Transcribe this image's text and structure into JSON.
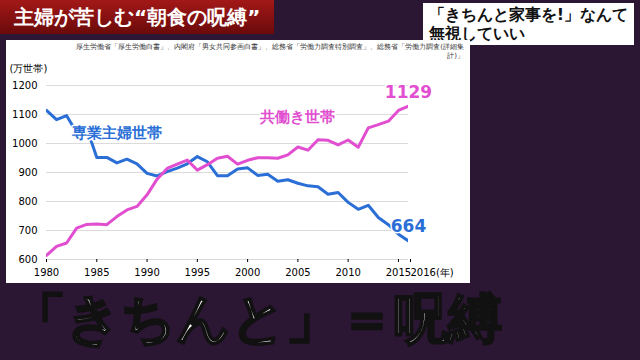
{
  "chart_data": {
    "type": "line",
    "title": "主婦が苦しむ“朝食の呪縛”",
    "header_right": [
      "「きちんと家事を!」なんて",
      "無視していい"
    ],
    "source": "厚生労働省「厚生労働白書」、内閣府「男女共同参画白書」、総務省「労働力調査特別調査」、総務省「労働力調査(詳細集計)」",
    "caption": "「きちんと」＝呪縛",
    "y_label": "(万世帯)",
    "x": [
      1980,
      1981,
      1982,
      1983,
      1984,
      1985,
      1986,
      1987,
      1988,
      1989,
      1990,
      1991,
      1992,
      1993,
      1994,
      1995,
      1996,
      1997,
      1998,
      1999,
      2000,
      2001,
      2002,
      2003,
      2004,
      2005,
      2006,
      2007,
      2008,
      2009,
      2010,
      2011,
      2012,
      2013,
      2014,
      2015,
      2016
    ],
    "series": [
      {
        "name": "専業主婦世帯",
        "color": "#2b6fd6",
        "values": [
          1114,
          1082,
          1096,
          1038,
          1054,
          952,
          952,
          933,
          946,
          930,
          897,
          888,
          903,
          915,
          930,
          955,
          937,
          889,
          889,
          912,
          916,
          890,
          894,
          870,
          875,
          863,
          854,
          851,
          825,
          831,
          797,
          773,
          787,
          745,
          720,
          687,
          664
        ]
      },
      {
        "name": "共働き世帯",
        "color": "#e14fd0",
        "values": [
          614,
          645,
          657,
          708,
          721,
          722,
          720,
          748,
          771,
          783,
          823,
          877,
          914,
          929,
          943,
          908,
          927,
          949,
          956,
          929,
          942,
          951,
          951,
          949,
          961,
          988,
          977,
          1013,
          1011,
          995,
          1012,
          987,
          1054,
          1065,
          1077,
          1114,
          1129
        ]
      }
    ],
    "xlim": [
      1980,
      2016
    ],
    "xticks": [
      1980,
      1985,
      1990,
      1995,
      2000,
      2005,
      2010,
      2015,
      {
        "value": 2016,
        "label": "2016(年)"
      }
    ],
    "ylim": [
      600,
      1200
    ],
    "yticks": [
      600,
      700,
      800,
      900,
      1000,
      1100,
      1200
    ],
    "grid": true,
    "annotations": [
      {
        "text": "1129",
        "x": 2016,
        "y": 1129,
        "color": "#e14fd0"
      },
      {
        "text": "664",
        "x": 2016,
        "y": 664,
        "color": "#2b6fd6"
      }
    ]
  }
}
